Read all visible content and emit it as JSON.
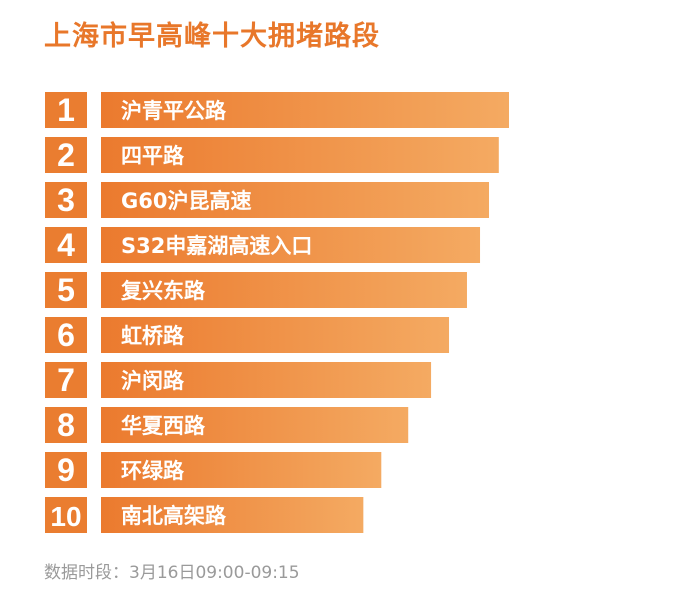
{
  "title": "上海市早高峰十大拥堵路段",
  "footer": "数据时段：3月16日09:00-09:15",
  "chart_data": {
    "type": "bar",
    "orientation": "horizontal",
    "title": "上海市早高峰十大拥堵路段",
    "ranks": [
      "1",
      "2",
      "3",
      "4",
      "5",
      "6",
      "7",
      "8",
      "9",
      "10"
    ],
    "categories": [
      "沪青平公路",
      "四平路",
      "G60沪昆高速",
      "S32申嘉湖高速入口",
      "复兴东路",
      "虹桥路",
      "沪闵路",
      "华夏西路",
      "环绿路",
      "南北高架路"
    ],
    "values": [
      100,
      97.5,
      95.1,
      92.9,
      89.7,
      85.3,
      80.9,
      75.3,
      68.7,
      64.3
    ],
    "value_unit": "relative bar length (%)",
    "colors": {
      "bar_start": "#eb7a2e",
      "bar_end": "#f4aa62",
      "rank_box": "#ea7d30",
      "title": "#e8772a",
      "footer": "#9a9a9a"
    }
  }
}
